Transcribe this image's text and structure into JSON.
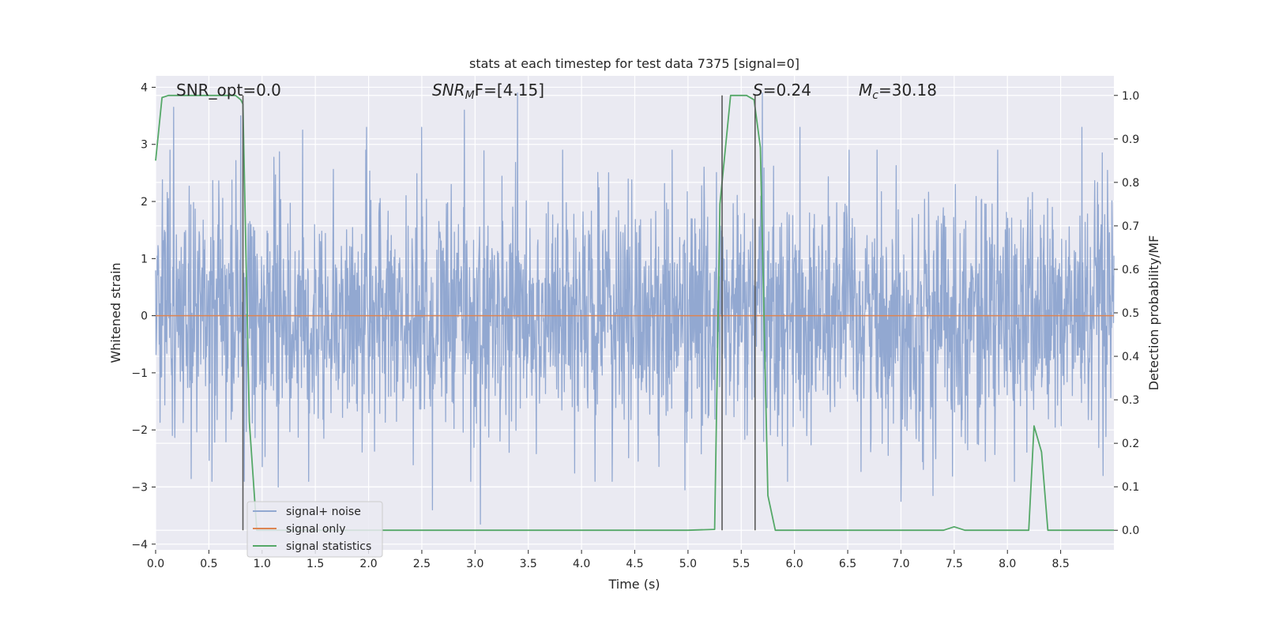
{
  "chart_data": {
    "type": "line",
    "title": "stats at each timestep for test data 7375 [signal=0]",
    "xlabel": "Time (s)",
    "ylabel": "Whitened strain",
    "y2label": "Detection probability/MF",
    "xlim": [
      0.0,
      9.0
    ],
    "ylim": [
      -4.1,
      4.2
    ],
    "y2lim": [
      -0.045,
      1.045
    ],
    "xticks": [
      0.0,
      0.5,
      1.0,
      1.5,
      2.0,
      2.5,
      3.0,
      3.5,
      4.0,
      4.5,
      5.0,
      5.5,
      6.0,
      6.5,
      7.0,
      7.5,
      8.0,
      8.5
    ],
    "xtick_labels": [
      "0.0",
      "0.5",
      "1.0",
      "1.5",
      "2.0",
      "2.5",
      "3.0",
      "3.5",
      "4.0",
      "4.5",
      "5.0",
      "5.5",
      "6.0",
      "6.5",
      "7.0",
      "7.5",
      "8.0",
      "8.5"
    ],
    "yticks": [
      -4,
      -3,
      -2,
      -1,
      0,
      1,
      2,
      3,
      4
    ],
    "ytick_labels": [
      "−4",
      "−3",
      "−2",
      "−1",
      "0",
      "1",
      "2",
      "3",
      "4"
    ],
    "y2ticks": [
      0.0,
      0.1,
      0.2,
      0.3,
      0.4,
      0.5,
      0.6,
      0.7,
      0.8,
      0.9,
      1.0
    ],
    "y2tick_labels": [
      "0.0",
      "0.1",
      "0.2",
      "0.3",
      "0.4",
      "0.5",
      "0.6",
      "0.7",
      "0.8",
      "0.9",
      "1.0"
    ],
    "annotations": {
      "snr_opt": "SNR_opt=0.0",
      "snr_mf_main": "SNR",
      "snr_mf_sub": "M",
      "snr_mf_rest": "F=[4.15]",
      "s_main": "S",
      "s_rest": "=0.24",
      "mc_main": "M",
      "mc_sub": "c",
      "mc_rest": "=30.18"
    },
    "vlines": [
      0.82,
      5.32,
      5.63
    ],
    "series": [
      {
        "name": "signal+ noise",
        "color": "#92a8d1",
        "axis": "left",
        "kind": "noise",
        "x_range": [
          0.0,
          9.0
        ],
        "typical_range": [
          -2.5,
          2.5
        ],
        "peaks": [
          {
            "x": 0.17,
            "y": 3.65
          },
          {
            "x": 0.8,
            "y": 3.5
          },
          {
            "x": 1.38,
            "y": 3.25
          },
          {
            "x": 1.98,
            "y": 3.3
          },
          {
            "x": 2.5,
            "y": 3.3
          },
          {
            "x": 2.9,
            "y": 3.6
          },
          {
            "x": 3.4,
            "y": 3.9
          },
          {
            "x": 5.7,
            "y": 3.9
          },
          {
            "x": 6.05,
            "y": 3.3
          },
          {
            "x": 7.3,
            "y": 3.75
          },
          {
            "x": 8.7,
            "y": 3.3
          },
          {
            "x": 3.05,
            "y": -3.65
          },
          {
            "x": 2.6,
            "y": -3.4
          },
          {
            "x": 7.0,
            "y": -3.25
          },
          {
            "x": 7.3,
            "y": -3.15
          },
          {
            "x": 1.15,
            "y": -3.0
          },
          {
            "x": 4.97,
            "y": -3.05
          },
          {
            "x": 8.9,
            "y": -2.8
          }
        ]
      },
      {
        "name": "signal only",
        "color": "#dd8452",
        "axis": "left",
        "x": [
          0.0,
          9.0
        ],
        "y": [
          0.0,
          0.0
        ]
      },
      {
        "name": "signal statistics",
        "color": "#55a868",
        "axis": "right",
        "x": [
          0.0,
          0.06,
          0.12,
          0.2,
          0.5,
          0.75,
          0.8,
          0.82,
          0.88,
          0.95,
          5.0,
          5.25,
          5.3,
          5.4,
          5.55,
          5.62,
          5.68,
          5.75,
          5.82,
          7.4,
          7.5,
          7.6,
          8.2,
          8.25,
          8.32,
          8.38,
          9.0
        ],
        "y": [
          0.85,
          0.995,
          1.0,
          1.0,
          1.0,
          1.0,
          0.99,
          0.98,
          0.25,
          0.0,
          0.0,
          0.002,
          0.75,
          1.0,
          1.0,
          0.99,
          0.88,
          0.08,
          0.0,
          0.0,
          0.008,
          0.0,
          0.0,
          0.24,
          0.18,
          0.0,
          0.0
        ]
      }
    ],
    "legend": {
      "placement": "lower-left",
      "entries": [
        "signal+ noise",
        "signal only",
        "signal statistics"
      ]
    }
  },
  "colors": {
    "axes_bg": "#eaeaf2",
    "grid": "#ffffff",
    "vline": "#5a5a5a",
    "text": "#262626"
  }
}
